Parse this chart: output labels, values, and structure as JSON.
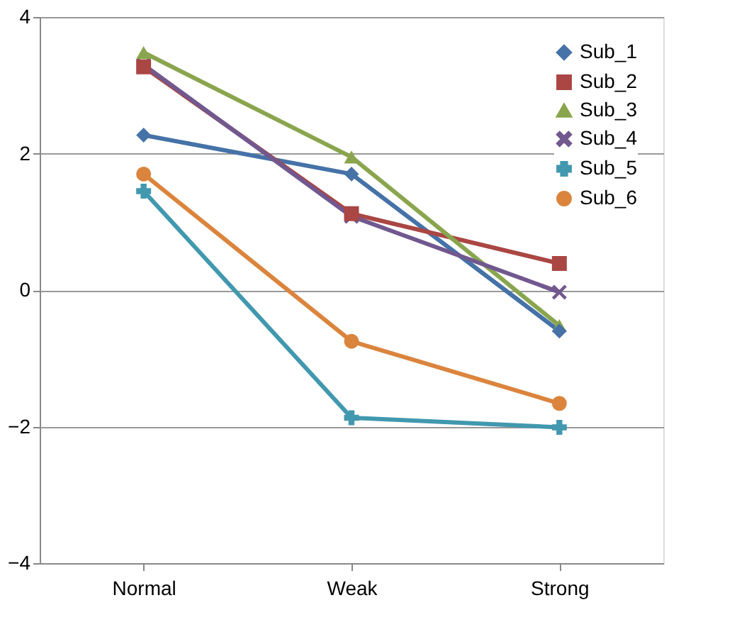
{
  "chart_data": {
    "type": "line",
    "categories": [
      "Normal",
      "Weak",
      "Strong"
    ],
    "series": [
      {
        "name": "Sub_1",
        "color": "#4572a7",
        "marker": "diamond",
        "values": [
          2.27,
          1.7,
          -0.6
        ]
      },
      {
        "name": "Sub_2",
        "color": "#aa4643",
        "marker": "square",
        "values": [
          3.27,
          1.12,
          0.39
        ]
      },
      {
        "name": "Sub_3",
        "color": "#89a54e",
        "marker": "triangle",
        "values": [
          3.48,
          1.95,
          -0.52
        ]
      },
      {
        "name": "Sub_4",
        "color": "#71588f",
        "marker": "cross",
        "values": [
          3.3,
          1.08,
          -0.03
        ]
      },
      {
        "name": "Sub_5",
        "color": "#4198af",
        "marker": "plus",
        "values": [
          1.45,
          -1.87,
          -2.01
        ]
      },
      {
        "name": "Sub_6",
        "color": "#db843d",
        "marker": "circle",
        "values": [
          1.7,
          -0.75,
          -1.66
        ]
      }
    ],
    "ylim": [
      -4,
      4
    ],
    "yticks": [
      -4,
      -2,
      0,
      2,
      4
    ],
    "grid": "y",
    "legend": "top right",
    "line_style": "solid"
  }
}
